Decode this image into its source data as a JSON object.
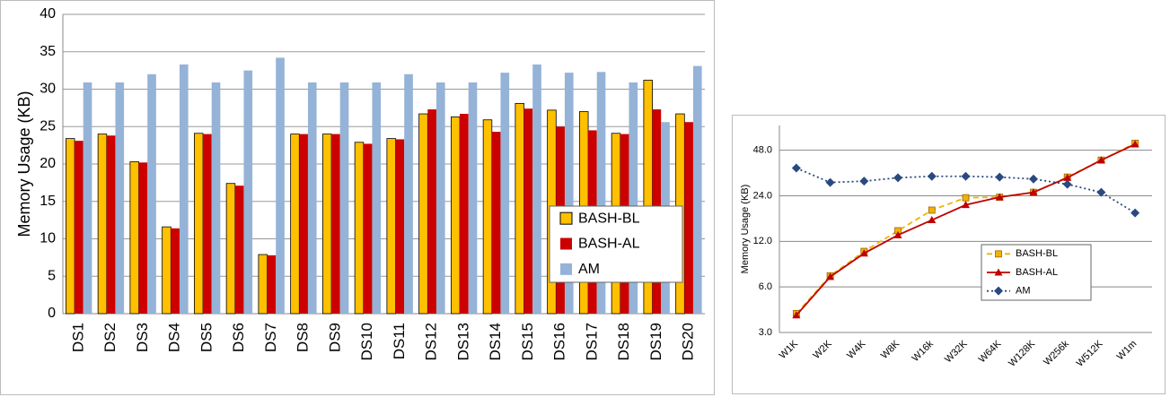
{
  "chart_data": [
    {
      "type": "bar",
      "y_label": "Memory Usage (KB)",
      "categories": [
        "DS1",
        "DS2",
        "DS3",
        "DS4",
        "DS5",
        "DS6",
        "DS7",
        "DS8",
        "DS9",
        "DS10",
        "DS11",
        "DS12",
        "DS13",
        "DS14",
        "DS15",
        "DS16",
        "DS17",
        "DS18",
        "DS19",
        "DS20"
      ],
      "series": [
        {
          "name": "BASH-BL",
          "color": "#ffc000",
          "values": [
            23.4,
            24.0,
            20.3,
            11.6,
            24.1,
            17.4,
            7.9,
            24.0,
            24.0,
            22.9,
            23.4,
            26.7,
            26.3,
            25.9,
            28.1,
            27.2,
            27.0,
            24.1,
            31.2,
            26.7
          ]
        },
        {
          "name": "BASH-AL",
          "color": "#cc0000",
          "values": [
            23.1,
            23.8,
            20.2,
            11.4,
            24.0,
            17.1,
            7.8,
            24.0,
            24.0,
            22.7,
            23.3,
            27.3,
            26.7,
            24.3,
            27.4,
            25.0,
            24.5,
            24.0,
            27.3,
            25.6
          ]
        },
        {
          "name": "AM",
          "color": "#95b3d7",
          "values": [
            30.9,
            30.9,
            32.0,
            33.3,
            30.9,
            32.5,
            34.2,
            30.9,
            30.9,
            30.9,
            32.0,
            30.9,
            30.9,
            32.2,
            33.3,
            32.2,
            32.3,
            30.9,
            25.6,
            33.1
          ]
        }
      ],
      "ylim": [
        0,
        40
      ],
      "yticks": [
        0,
        5,
        10,
        15,
        20,
        25,
        30,
        35,
        40
      ],
      "grid": true,
      "log_scale": false,
      "legend": "right"
    },
    {
      "type": "line",
      "y_label": "Memory Usage (KB)",
      "categories": [
        "W1K",
        "W2K",
        "W4K",
        "W8K",
        "W16k",
        "W32K",
        "W64K",
        "W128K",
        "W256k",
        "W512K",
        "W1m"
      ],
      "series": [
        {
          "name": "BASH-BL",
          "color": "#f0b400",
          "marker": "square",
          "dash": "dashed",
          "values": [
            4.0,
            7.1,
            10.3,
            14.1,
            19.3,
            23.3,
            23.5,
            25.3,
            31.9,
            41.3,
            53.4
          ]
        },
        {
          "name": "BASH-AL",
          "color": "#c00000",
          "marker": "triangle",
          "dash": "solid",
          "values": [
            3.9,
            7.0,
            10.0,
            13.2,
            16.6,
            20.9,
            23.5,
            25.3,
            31.6,
            41.3,
            52.6
          ]
        },
        {
          "name": "AM",
          "color": "#2a4a7f",
          "marker": "diamond",
          "dash": "dotted",
          "values": [
            36.6,
            29.4,
            30.0,
            31.6,
            32.3,
            32.3,
            31.9,
            31.0,
            28.6,
            25.3,
            18.5
          ]
        }
      ],
      "ylim": [
        3,
        70
      ],
      "yticks": [
        {
          "value": 3,
          "label": "3.0"
        },
        {
          "value": 6,
          "label": "6.0"
        },
        {
          "value": 12,
          "label": "12.0"
        },
        {
          "value": 24,
          "label": "24.0"
        },
        {
          "value": 48,
          "label": "48.0"
        }
      ],
      "grid": true,
      "log_scale": true,
      "legend": "lower right"
    }
  ]
}
